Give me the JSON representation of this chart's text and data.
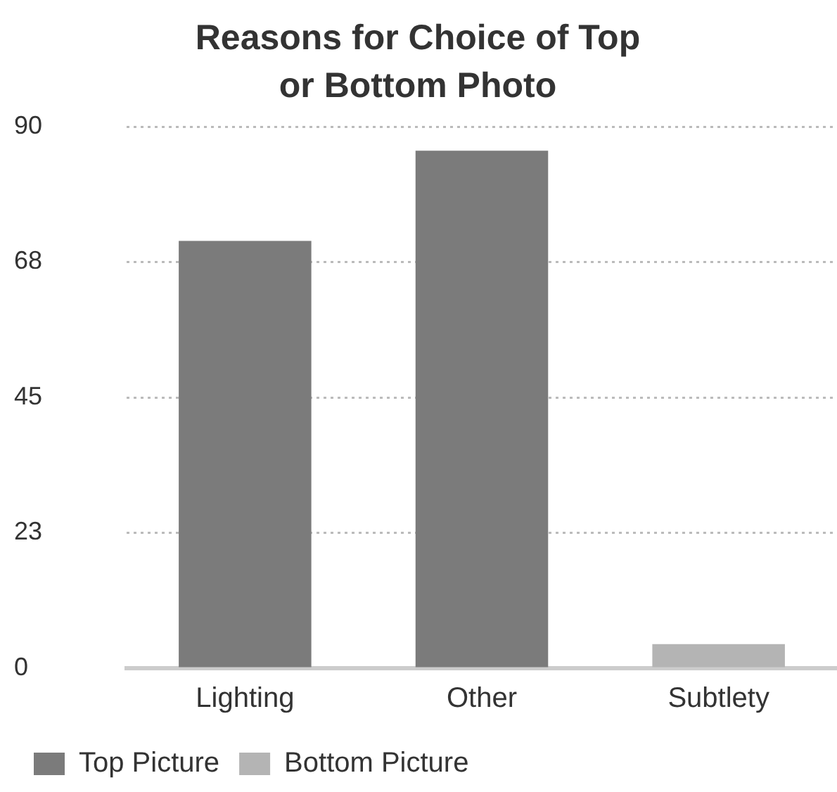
{
  "chart_data": {
    "type": "bar",
    "title": "Reasons for Choice of Top or Bottom Photo",
    "categories": [
      "Lighting",
      "Other",
      "Subtlety"
    ],
    "series": [
      {
        "name": "Top Picture",
        "color": "#7b7b7b",
        "values": [
          71,
          86,
          null
        ]
      },
      {
        "name": "Bottom Picture",
        "color": "#b4b4b4",
        "values": [
          null,
          null,
          4
        ]
      }
    ],
    "ylim": [
      0,
      90
    ],
    "yticks": [
      0,
      {
        "value": 22.5,
        "label": "23"
      },
      45,
      {
        "value": 67.5,
        "label": "68"
      },
      90
    ],
    "grid": "y",
    "legend": "bottom"
  }
}
